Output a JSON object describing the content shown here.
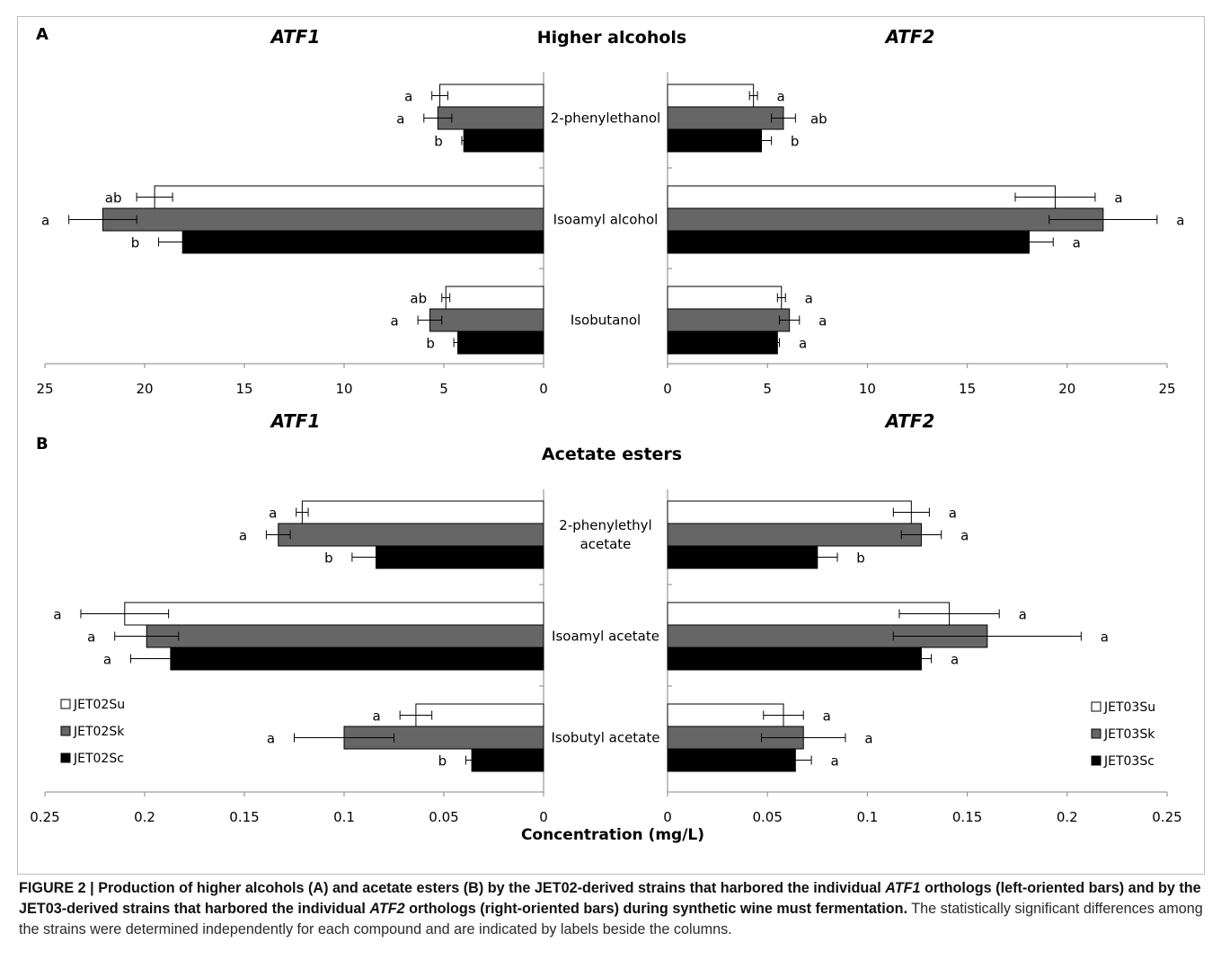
{
  "caption": {
    "label": "FIGURE 2 | ",
    "bold_1": "Production of higher alcohols (A) and acetate esters (B) by the JET02-derived strains that harbored the individual ",
    "gene_1": "ATF1",
    "bold_2": " orthologs (left-oriented bars) and by the JET03-derived strains that harbored the individual ",
    "gene_2": "ATF2",
    "bold_3": " orthologs (right-oriented bars) during synthetic wine must fermentation.",
    "rest": " The statistically significant differences among the strains were determined independently for each compound and are indicated by labels beside the columns."
  },
  "colors": {
    "Su": "#ffffff",
    "Sk": "#666666",
    "Sc": "#000000",
    "outline": "#000000",
    "axis": "#868686"
  },
  "legend_left": [
    "JET02Su",
    "JET02Sk",
    "JET02Sc"
  ],
  "legend_right": [
    "JET03Su",
    "JET03Sk",
    "JET03Sc"
  ],
  "x_axis_title": "Concentration (mg/L)",
  "chart_data": [
    {
      "panel": "A",
      "type": "bar",
      "orientation": "horizontal-butterfly",
      "title": "Higher alcohols",
      "left_title": "ATF1",
      "right_title": "ATF2",
      "categories": [
        "2-phenylethanol",
        "Isoamyl alcohol",
        "Isobutanol"
      ],
      "category_lines": [
        [
          "2-phenylethanol"
        ],
        [
          "Isoamyl alcohol"
        ],
        [
          "Isobutanol"
        ]
      ],
      "xlim": [
        0,
        25
      ],
      "ticks": [
        0,
        5,
        10,
        15,
        20,
        25
      ],
      "tick_labels": [
        "0",
        "5",
        "10",
        "15",
        "20",
        "25"
      ],
      "left": {
        "series": [
          {
            "name": "JET02Su",
            "values": [
              5.2,
              19.5,
              4.9
            ],
            "errors": [
              0.4,
              0.9,
              0.2
            ],
            "letters": [
              "a",
              "ab",
              "ab"
            ]
          },
          {
            "name": "JET02Sk",
            "values": [
              5.3,
              22.1,
              5.7
            ],
            "errors": [
              0.7,
              1.7,
              0.6
            ],
            "letters": [
              "a",
              "a",
              "a"
            ]
          },
          {
            "name": "JET02Sc",
            "values": [
              4.0,
              18.1,
              4.3
            ],
            "errors": [
              0.1,
              1.2,
              0.2
            ],
            "letters": [
              "b",
              "b",
              "b"
            ]
          }
        ]
      },
      "right": {
        "series": [
          {
            "name": "JET03Su",
            "values": [
              4.3,
              19.4,
              5.7
            ],
            "errors": [
              0.2,
              2.0,
              0.2
            ],
            "letters": [
              "a",
              "a",
              "a"
            ]
          },
          {
            "name": "JET03Sk",
            "values": [
              5.8,
              21.8,
              6.1
            ],
            "errors": [
              0.6,
              2.7,
              0.5
            ],
            "letters": [
              "ab",
              "a",
              "a"
            ]
          },
          {
            "name": "JET03Sc",
            "values": [
              4.7,
              18.1,
              5.5
            ],
            "errors": [
              0.5,
              1.2,
              0.1
            ],
            "letters": [
              "b",
              "a",
              "a"
            ]
          }
        ]
      }
    },
    {
      "panel": "B",
      "type": "bar",
      "orientation": "horizontal-butterfly",
      "title": "Acetate esters",
      "left_title": "ATF1",
      "right_title": "ATF2",
      "categories": [
        "2-phenylethyl acetate",
        "Isoamyl acetate",
        "Isobutyl acetate"
      ],
      "category_lines": [
        [
          "2-phenylethyl",
          "acetate"
        ],
        [
          "Isoamyl acetate"
        ],
        [
          "Isobutyl acetate"
        ]
      ],
      "xlim": [
        0,
        0.25
      ],
      "ticks": [
        0,
        0.05,
        0.1,
        0.15,
        0.2,
        0.25
      ],
      "tick_labels": [
        "0",
        "0.05",
        "0.1",
        "0.15",
        "0.2",
        "0.25"
      ],
      "xlabel": "Concentration (mg/L)",
      "left": {
        "series": [
          {
            "name": "JET02Su",
            "values": [
              0.121,
              0.21,
              0.064
            ],
            "errors": [
              0.003,
              0.022,
              0.008
            ],
            "letters": [
              "a",
              "a",
              "a"
            ]
          },
          {
            "name": "JET02Sk",
            "values": [
              0.133,
              0.199,
              0.1
            ],
            "errors": [
              0.006,
              0.016,
              0.025
            ],
            "letters": [
              "a",
              "a",
              "a"
            ]
          },
          {
            "name": "JET02Sc",
            "values": [
              0.084,
              0.187,
              0.036
            ],
            "errors": [
              0.012,
              0.02,
              0.003
            ],
            "letters": [
              "b",
              "a",
              "b"
            ]
          }
        ]
      },
      "right": {
        "series": [
          {
            "name": "JET03Su",
            "values": [
              0.122,
              0.141,
              0.058
            ],
            "errors": [
              0.009,
              0.025,
              0.01
            ],
            "letters": [
              "a",
              "a",
              "a"
            ]
          },
          {
            "name": "JET03Sk",
            "values": [
              0.127,
              0.16,
              0.068
            ],
            "errors": [
              0.01,
              0.047,
              0.021
            ],
            "letters": [
              "a",
              "a",
              "a"
            ]
          },
          {
            "name": "JET03Sc",
            "values": [
              0.075,
              0.127,
              0.064
            ],
            "errors": [
              0.01,
              0.005,
              0.008
            ],
            "letters": [
              "b",
              "a",
              "a"
            ]
          }
        ]
      }
    }
  ]
}
